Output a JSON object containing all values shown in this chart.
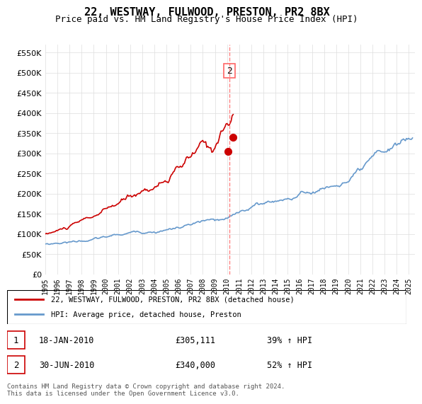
{
  "title": "22, WESTWAY, FULWOOD, PRESTON, PR2 8BX",
  "subtitle": "Price paid vs. HM Land Registry's House Price Index (HPI)",
  "red_label": "22, WESTWAY, FULWOOD, PRESTON, PR2 8BX (detached house)",
  "blue_label": "HPI: Average price, detached house, Preston",
  "red_color": "#cc0000",
  "blue_color": "#6699cc",
  "dashed_color": "#ff6666",
  "marker1_color": "#cc0000",
  "marker2_color": "#cc0000",
  "annotation_box_color": "#cc0000",
  "annotation_bg": "white",
  "ylim": [
    0,
    570000
  ],
  "yticks": [
    0,
    50000,
    100000,
    150000,
    200000,
    250000,
    300000,
    350000,
    400000,
    450000,
    500000,
    550000
  ],
  "xlim_start": 1995.0,
  "xlim_end": 2025.5,
  "transaction1": {
    "date": "18-JAN-2010",
    "price": 305111,
    "pct": "39% ↑ HPI",
    "label": "1",
    "x": 2010.05
  },
  "transaction2": {
    "date": "30-JUN-2010",
    "price": 340000,
    "pct": "52% ↑ HPI",
    "label": "2",
    "x": 2010.5
  },
  "footer": "Contains HM Land Registry data © Crown copyright and database right 2024.\nThis data is licensed under the Open Government Licence v3.0.",
  "legend_entries": [
    {
      "label": "22, WESTWAY, FULWOOD, PRESTON, PR2 8BX (detached house)",
      "color": "#cc0000"
    },
    {
      "label": "HPI: Average price, detached house, Preston",
      "color": "#6699cc"
    }
  ],
  "table_rows": [
    {
      "num": "1",
      "date": "18-JAN-2010",
      "price": "£305,111",
      "pct": "39% ↑ HPI"
    },
    {
      "num": "2",
      "date": "30-JUN-2010",
      "price": "£340,000",
      "pct": "52% ↑ HPI"
    }
  ]
}
